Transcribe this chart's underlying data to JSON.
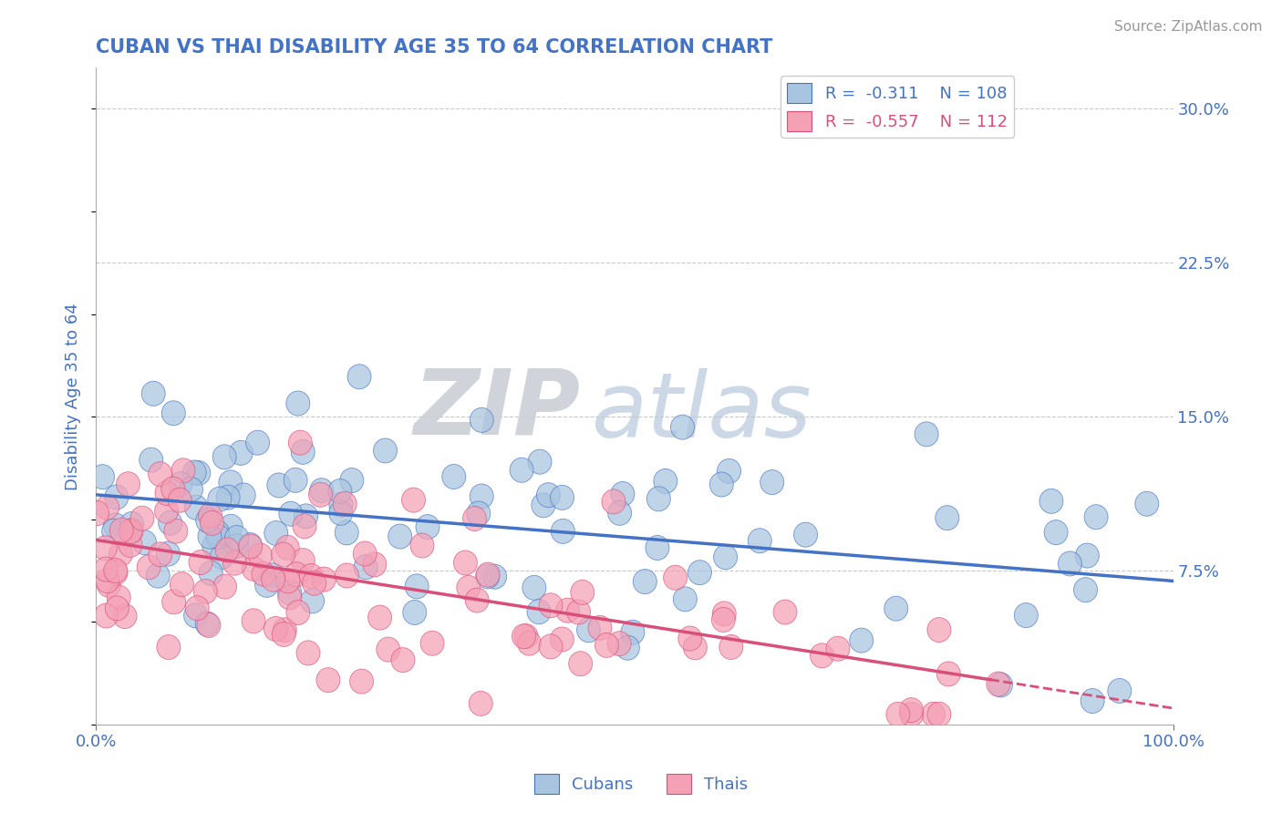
{
  "title": "CUBAN VS THAI DISABILITY AGE 35 TO 64 CORRELATION CHART",
  "source_text": "Source: ZipAtlas.com",
  "ylabel": "Disability Age 35 to 64",
  "xlim": [
    0.0,
    1.0
  ],
  "ylim": [
    0.0,
    0.32
  ],
  "yticks": [
    0.075,
    0.15,
    0.225,
    0.3
  ],
  "ytick_labels": [
    "7.5%",
    "15.0%",
    "22.5%",
    "30.0%"
  ],
  "xtick_labels": [
    "0.0%",
    "100.0%"
  ],
  "xticks": [
    0.0,
    1.0
  ],
  "cuban_color": "#a8c4e0",
  "thai_color": "#f4a0b5",
  "cuban_line_color": "#4472c4",
  "thai_line_color": "#d94f7a",
  "title_color": "#4472c4",
  "axis_label_color": "#4472c4",
  "tick_label_color": "#4472c4",
  "cuban_R": -0.311,
  "thai_R": -0.557,
  "cuban_intercept": 0.112,
  "cuban_slope": -0.042,
  "thai_intercept": 0.09,
  "thai_slope": -0.082,
  "watermark_zip": "ZIP",
  "watermark_atlas": "atlas",
  "background_color": "#ffffff",
  "grid_color": "#bbbbbb"
}
